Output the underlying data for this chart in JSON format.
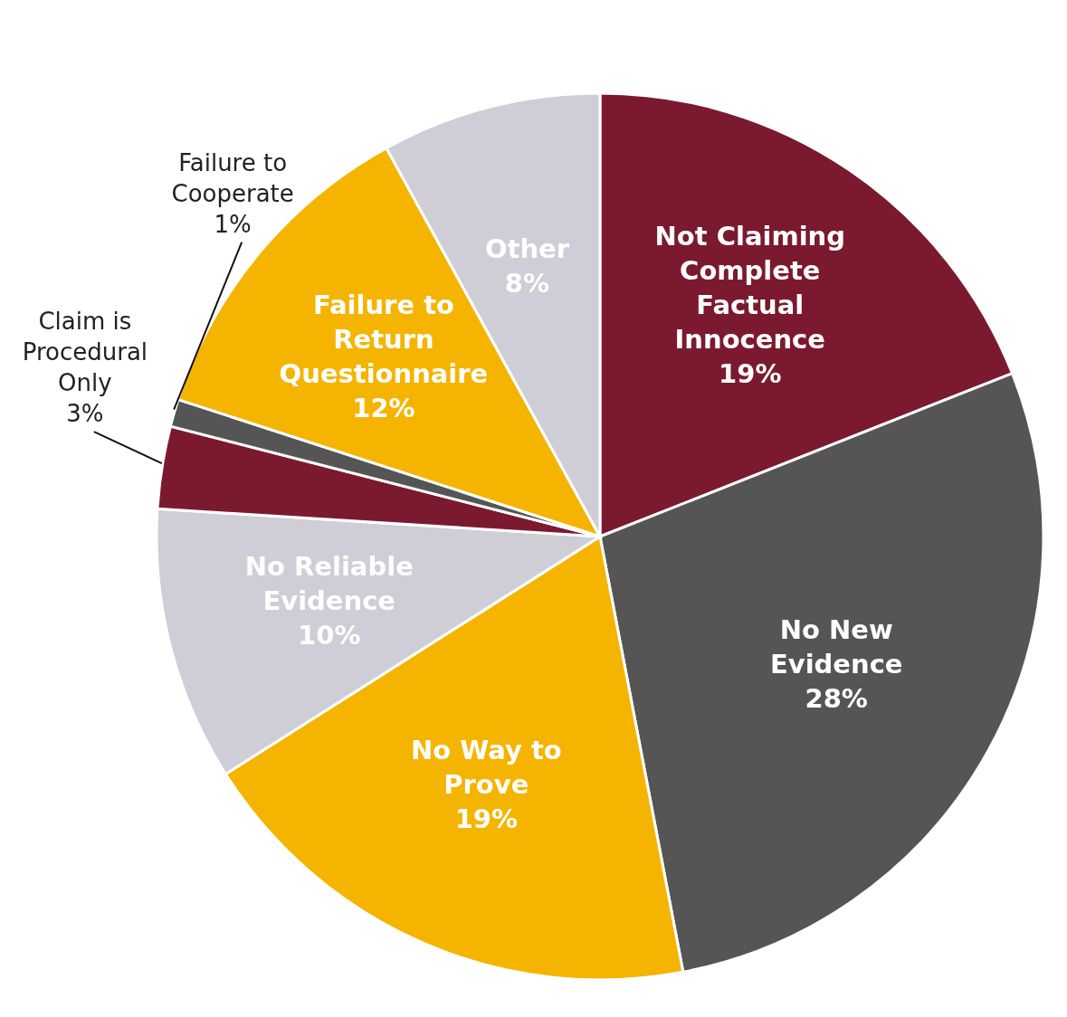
{
  "chart_data": {
    "type": "pie",
    "categories": [
      "Not Claiming Complete Factual Innocence",
      "No New Evidence",
      "No Way to Prove",
      "No Reliable Evidence",
      "Claim is Procedural Only",
      "Failure to Cooperate",
      "Failure to Return Questionnaire",
      "Other"
    ],
    "values": [
      19,
      28,
      19,
      10,
      3,
      1,
      12,
      8
    ],
    "value_labels": [
      "19%",
      "28%",
      "19%",
      "10%",
      "3%",
      "1%",
      "12%",
      "8%"
    ],
    "colors": [
      "#7b1a2e",
      "#555555",
      "#f5b400",
      "#cfcdd6",
      "#7b1a2e",
      "#555555",
      "#f5b400",
      "#cfcdd6"
    ],
    "legend": false
  }
}
